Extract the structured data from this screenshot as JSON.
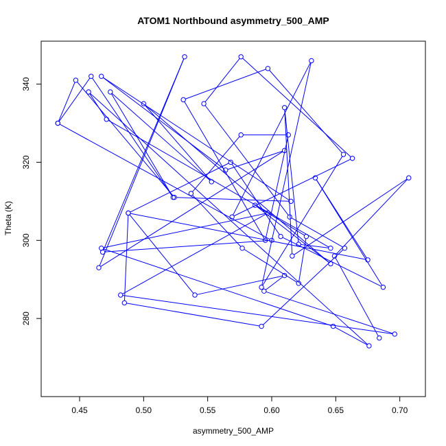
{
  "colors": {
    "series": "#0000ff",
    "axis": "#000000",
    "background": "#ffffff"
  },
  "chart_data": {
    "type": "scatter",
    "connected": true,
    "title": "ATOM1 Northbound asymmetry_500_AMP",
    "xlabel": "asymmetry_500_AMP",
    "ylabel": "Theta (K)",
    "xlim": [
      0.42,
      0.72
    ],
    "ylim": [
      260,
      351
    ],
    "xticks": [
      0.45,
      0.5,
      0.55,
      0.6,
      0.65,
      0.7
    ],
    "xtick_labels": [
      "0.45",
      "0.50",
      "0.55",
      "0.60",
      "0.65",
      "0.70"
    ],
    "yticks": [
      280,
      300,
      320,
      340
    ],
    "ytick_labels": [
      "280",
      "300",
      "320",
      "340"
    ],
    "grid": false,
    "legend": "none",
    "series": [
      {
        "x": [
          0.433,
          0.6,
          0.468,
          0.532,
          0.465,
          0.61,
          0.564,
          0.467,
          0.615,
          0.524,
          0.447,
          0.433,
          0.459,
          0.523,
          0.474,
          0.553,
          0.5,
          0.646,
          0.587,
          0.627,
          0.621,
          0.577,
          0.537,
          0.576,
          0.613,
          0.595,
          0.531,
          0.597,
          0.656,
          0.592,
          0.631,
          0.569,
          0.663,
          0.576,
          0.547,
          0.614,
          0.657,
          0.592,
          0.485,
          0.488,
          0.568,
          0.607,
          0.687,
          0.634,
          0.675,
          0.488,
          0.54,
          0.61,
          0.594,
          0.696,
          0.482,
          0.597,
          0.467,
          0.648,
          0.676,
          0.457,
          0.471,
          0.646,
          0.621,
          0.61,
          0.616,
          0.707,
          0.649,
          0.684
        ],
        "y": [
          330,
          300,
          297,
          347,
          293,
          323,
          318,
          342,
          310,
          311,
          341,
          330,
          342,
          311,
          338,
          315,
          335,
          294,
          309,
          301,
          289,
          298,
          312,
          327,
          327,
          300,
          336,
          344,
          322,
          288,
          346,
          306,
          321,
          347,
          335,
          306,
          298,
          278,
          284,
          307,
          320,
          301,
          288,
          316,
          295,
          307,
          286,
          291,
          287,
          276,
          286,
          307,
          298,
          278,
          273,
          338,
          331,
          298,
          299,
          334,
          296,
          316,
          296,
          275
        ]
      }
    ]
  }
}
